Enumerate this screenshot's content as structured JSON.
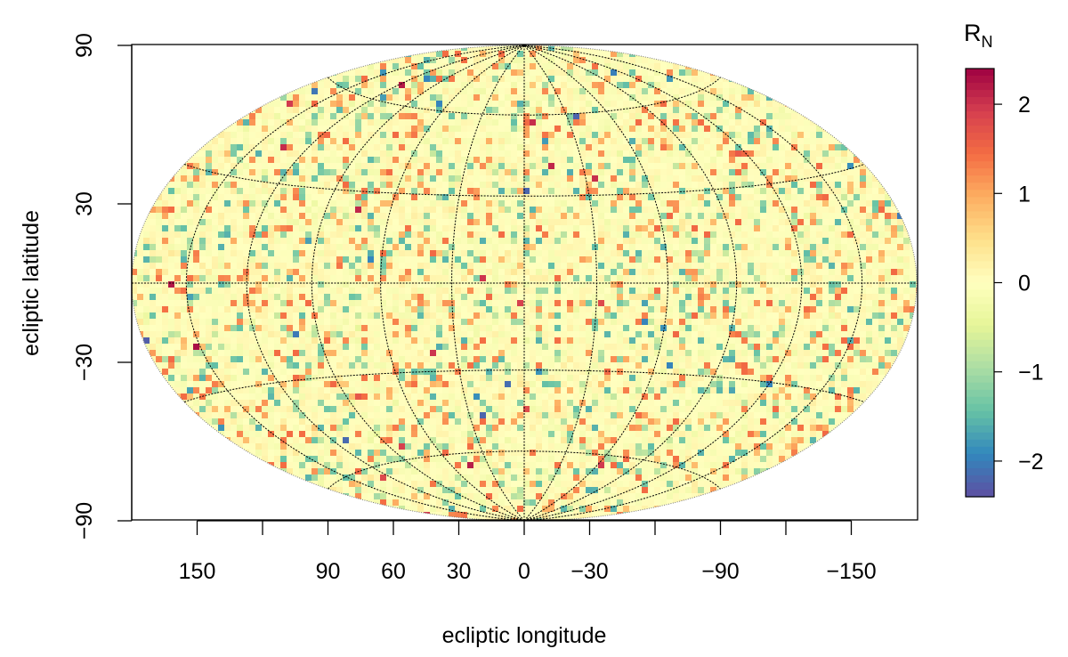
{
  "chart_data": {
    "type": "heatmap",
    "projection": "Hammer-Aitoff (equal-area all-sky)",
    "title": "",
    "xlabel": "ecliptic longitude",
    "ylabel": "ecliptic latitude",
    "x_axis": {
      "direction": "longitude decreases to the right",
      "ticks": [
        180,
        150,
        120,
        90,
        60,
        30,
        0,
        -30,
        -60,
        -90,
        -120,
        -150,
        -180
      ],
      "tick_labels": [
        "150",
        "90",
        "60",
        "30",
        "0",
        "−30",
        "−90",
        "−150"
      ],
      "labeled_ticks": [
        150,
        90,
        60,
        30,
        0,
        -30,
        -90,
        -150
      ]
    },
    "y_axis": {
      "ticks": [
        90,
        60,
        30,
        0,
        -30,
        -60,
        -90
      ],
      "tick_labels": [
        "90",
        "30",
        "−30",
        "−90"
      ],
      "labeled_ticks": [
        90,
        30,
        -30,
        -90
      ]
    },
    "graticule": {
      "meridians_deg": [
        180,
        150,
        120,
        90,
        60,
        30,
        0,
        -30,
        -60,
        -90,
        -120,
        -150,
        -180
      ],
      "parallels_deg": [
        60,
        30,
        0,
        -30,
        -60
      ],
      "style": "dotted black"
    },
    "value_description": "pixel values of R_N scattered around 0, mostly within about ±1, rare pixels reaching ±2",
    "colorbar": {
      "label": "R",
      "label_subscript": "N",
      "range": [
        -2.4,
        2.4
      ],
      "ticks": [
        2,
        1,
        0,
        -1,
        -2
      ],
      "tick_labels": [
        "2",
        "1",
        "0",
        "−1",
        "−2"
      ],
      "palette_high_to_low": [
        "#9e0142",
        "#d53e4f",
        "#f46d43",
        "#fdae61",
        "#fee08b",
        "#ffffbf",
        "#e6f598",
        "#abdda4",
        "#66c2a5",
        "#3288bd",
        "#5e4fa2"
      ]
    }
  }
}
